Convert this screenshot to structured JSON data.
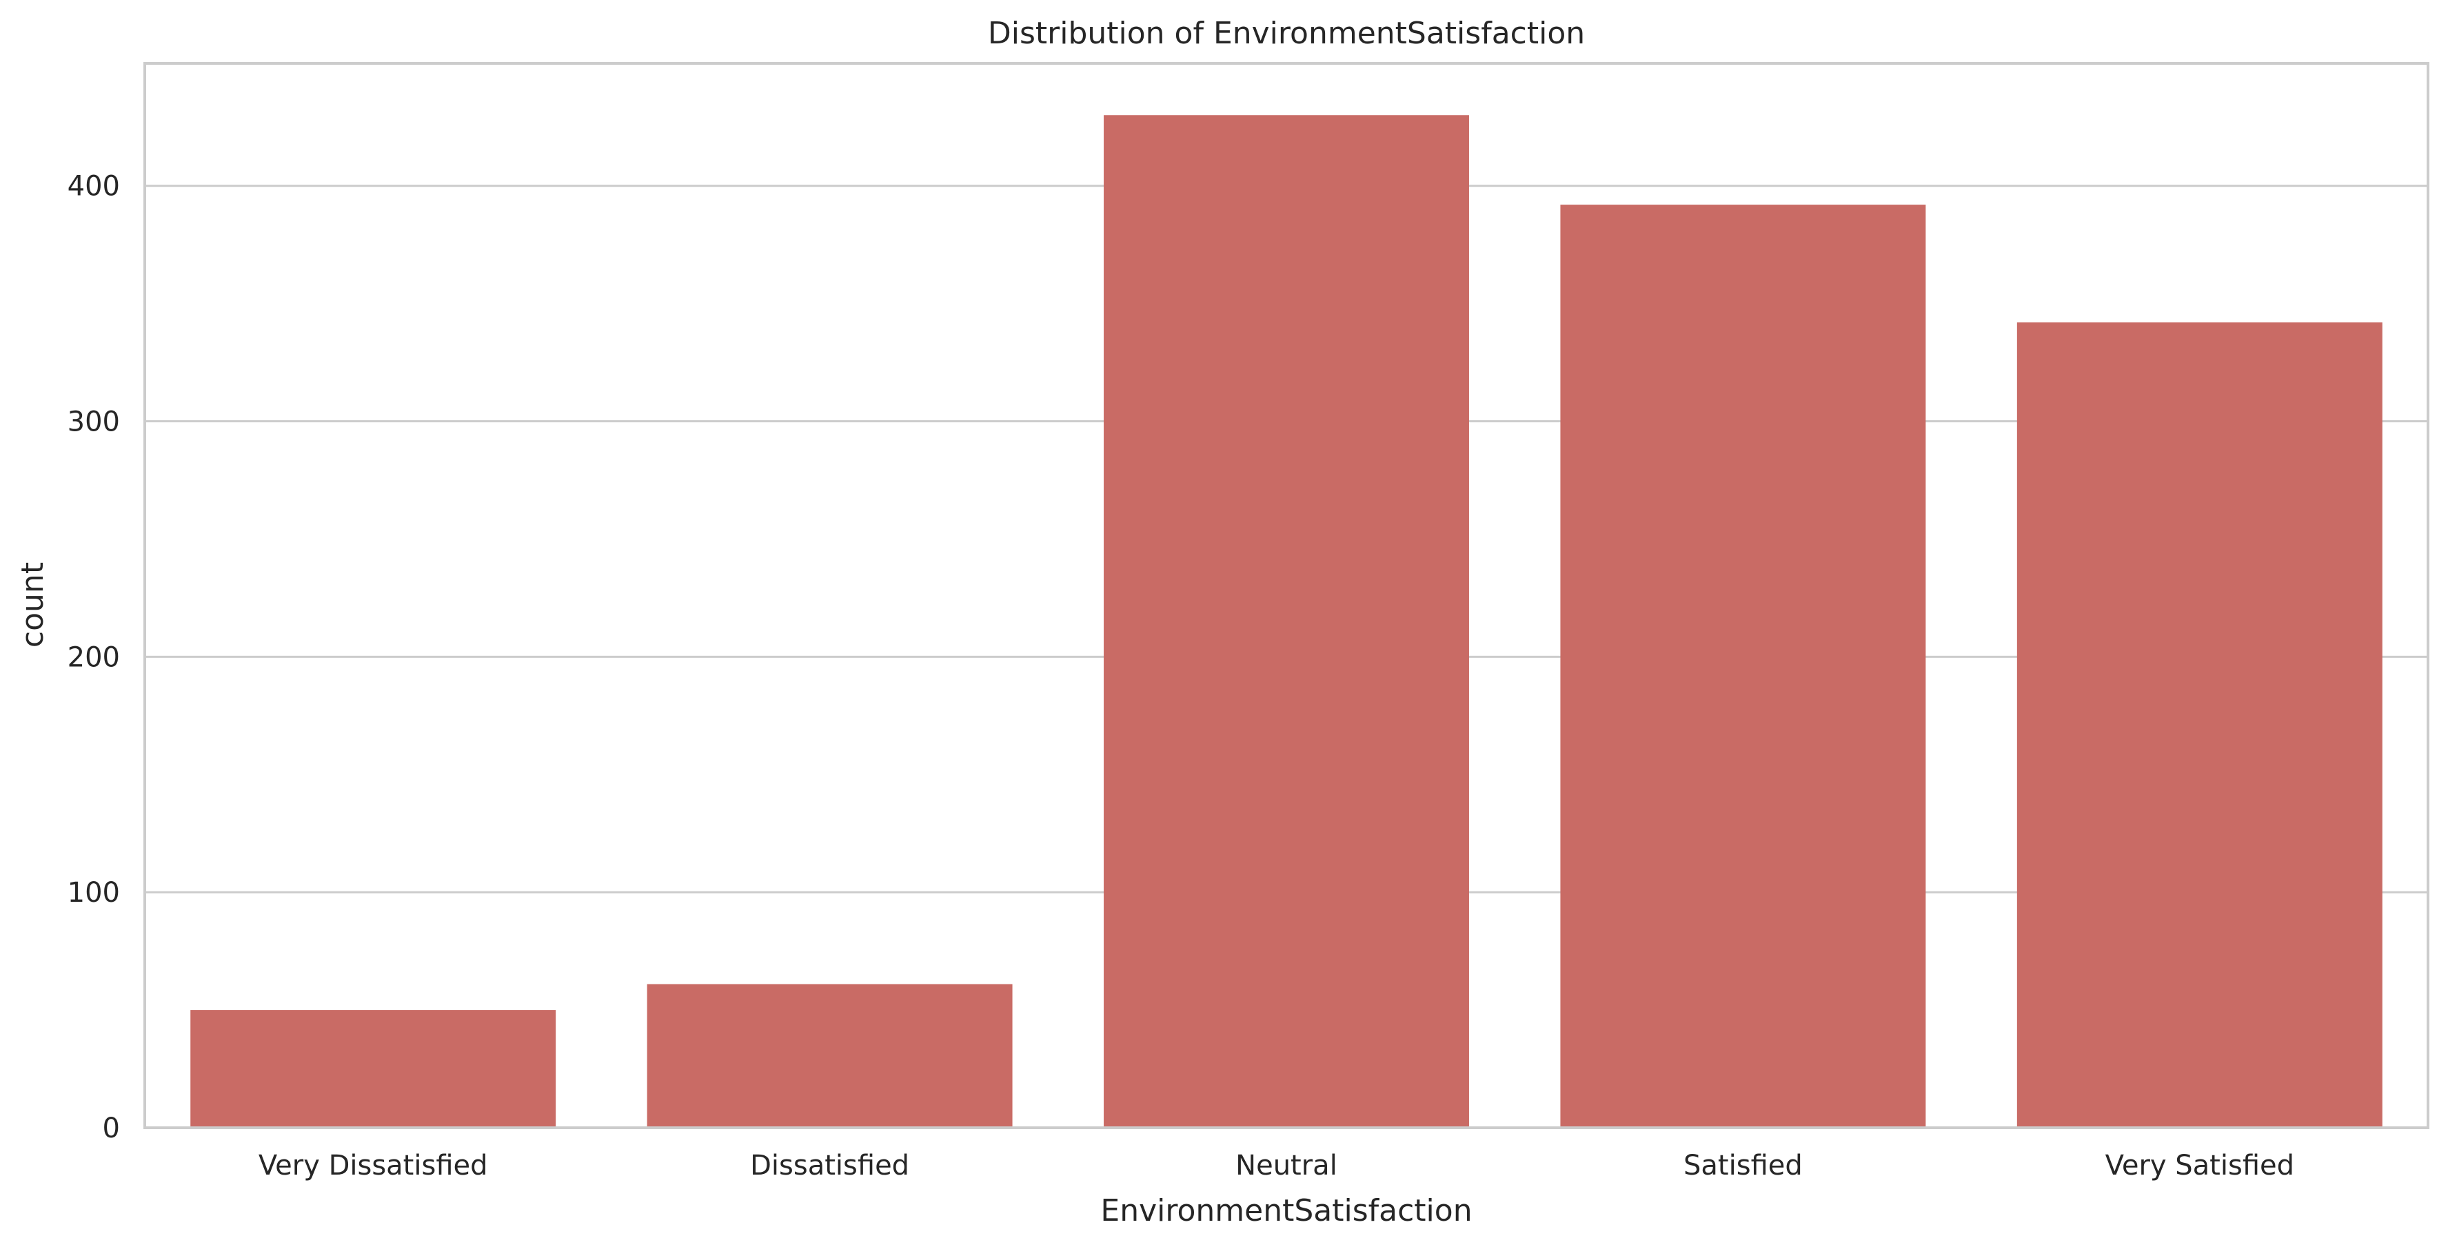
{
  "chart_data": {
    "type": "bar",
    "title": "Distribution of EnvironmentSatisfaction",
    "xlabel": "EnvironmentSatisfaction",
    "ylabel": "count",
    "categories": [
      "Very Dissatisfied",
      "Dissatisfied",
      "Neutral",
      "Satisfied",
      "Very Satisfied"
    ],
    "values": [
      50,
      61,
      430,
      392,
      342
    ],
    "ylim": [
      0,
      452
    ],
    "yticks": [
      0,
      100,
      200,
      300,
      400
    ],
    "ytick_labels": [
      "0",
      "100",
      "200",
      "300",
      "400"
    ],
    "grid": true,
    "legend": "none",
    "colors": {
      "bar": "#c96b65",
      "grid": "#cccccc",
      "frame": "#cccccc",
      "text": "#262626",
      "background": "#ffffff"
    }
  }
}
